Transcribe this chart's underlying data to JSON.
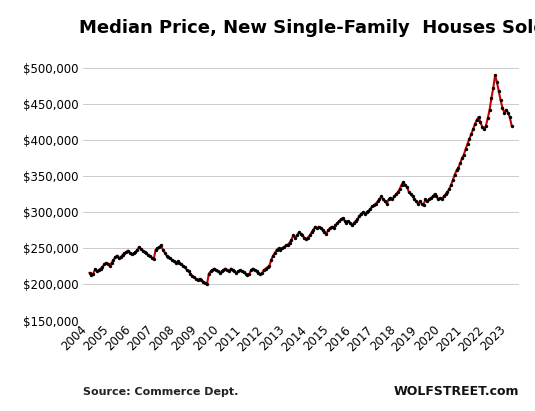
{
  "title": "Median Price, New Single-Family  Houses Sold",
  "source_left": "Source: Commerce Dept.",
  "source_right": "WOLFSTREET.com",
  "line_color": "#cc0000",
  "dot_color": "#000000",
  "background_color": "#ffffff",
  "grid_color": "#cccccc",
  "ylim": [
    150000,
    520000
  ],
  "yticks": [
    150000,
    200000,
    250000,
    300000,
    350000,
    400000,
    450000,
    500000
  ],
  "xlim": [
    2003.7,
    2023.5
  ],
  "data": [
    [
      2004.0,
      216000
    ],
    [
      2004.083,
      213000
    ],
    [
      2004.167,
      215000
    ],
    [
      2004.25,
      221000
    ],
    [
      2004.333,
      218000
    ],
    [
      2004.417,
      220000
    ],
    [
      2004.5,
      222000
    ],
    [
      2004.583,
      224000
    ],
    [
      2004.667,
      228000
    ],
    [
      2004.75,
      230000
    ],
    [
      2004.833,
      229000
    ],
    [
      2004.917,
      226000
    ],
    [
      2005.0,
      230000
    ],
    [
      2005.083,
      234000
    ],
    [
      2005.167,
      238000
    ],
    [
      2005.25,
      240000
    ],
    [
      2005.333,
      236000
    ],
    [
      2005.417,
      238000
    ],
    [
      2005.5,
      241000
    ],
    [
      2005.583,
      243000
    ],
    [
      2005.667,
      245000
    ],
    [
      2005.75,
      247000
    ],
    [
      2005.833,
      244000
    ],
    [
      2005.917,
      242000
    ],
    [
      2006.0,
      243000
    ],
    [
      2006.083,
      245000
    ],
    [
      2006.167,
      248000
    ],
    [
      2006.25,
      252000
    ],
    [
      2006.333,
      249000
    ],
    [
      2006.417,
      247000
    ],
    [
      2006.5,
      245000
    ],
    [
      2006.583,
      243000
    ],
    [
      2006.667,
      241000
    ],
    [
      2006.75,
      239000
    ],
    [
      2006.833,
      237000
    ],
    [
      2006.917,
      235000
    ],
    [
      2007.0,
      248000
    ],
    [
      2007.083,
      250000
    ],
    [
      2007.167,
      252000
    ],
    [
      2007.25,
      254000
    ],
    [
      2007.333,
      248000
    ],
    [
      2007.417,
      244000
    ],
    [
      2007.5,
      240000
    ],
    [
      2007.583,
      238000
    ],
    [
      2007.667,
      236000
    ],
    [
      2007.75,
      234000
    ],
    [
      2007.833,
      232000
    ],
    [
      2007.917,
      230000
    ],
    [
      2008.0,
      232000
    ],
    [
      2008.083,
      230000
    ],
    [
      2008.167,
      228000
    ],
    [
      2008.25,
      226000
    ],
    [
      2008.333,
      224000
    ],
    [
      2008.417,
      220000
    ],
    [
      2008.5,
      218000
    ],
    [
      2008.583,
      215000
    ],
    [
      2008.667,
      212000
    ],
    [
      2008.75,
      210000
    ],
    [
      2008.833,
      208000
    ],
    [
      2008.917,
      206000
    ],
    [
      2009.0,
      208000
    ],
    [
      2009.083,
      206000
    ],
    [
      2009.167,
      204000
    ],
    [
      2009.25,
      202000
    ],
    [
      2009.333,
      200000
    ],
    [
      2009.417,
      215000
    ],
    [
      2009.5,
      218000
    ],
    [
      2009.583,
      220000
    ],
    [
      2009.667,
      222000
    ],
    [
      2009.75,
      220000
    ],
    [
      2009.833,
      218000
    ],
    [
      2009.917,
      216000
    ],
    [
      2010.0,
      218000
    ],
    [
      2010.083,
      220000
    ],
    [
      2010.167,
      222000
    ],
    [
      2010.25,
      220000
    ],
    [
      2010.333,
      218000
    ],
    [
      2010.417,
      222000
    ],
    [
      2010.5,
      220000
    ],
    [
      2010.583,
      218000
    ],
    [
      2010.667,
      216000
    ],
    [
      2010.75,
      218000
    ],
    [
      2010.833,
      220000
    ],
    [
      2010.917,
      218000
    ],
    [
      2011.0,
      217000
    ],
    [
      2011.083,
      215000
    ],
    [
      2011.167,
      213000
    ],
    [
      2011.25,
      214000
    ],
    [
      2011.333,
      220000
    ],
    [
      2011.417,
      222000
    ],
    [
      2011.5,
      220000
    ],
    [
      2011.583,
      218000
    ],
    [
      2011.667,
      216000
    ],
    [
      2011.75,
      214000
    ],
    [
      2011.833,
      216000
    ],
    [
      2011.917,
      220000
    ],
    [
      2012.0,
      222000
    ],
    [
      2012.083,
      224000
    ],
    [
      2012.167,
      226000
    ],
    [
      2012.25,
      234000
    ],
    [
      2012.333,
      240000
    ],
    [
      2012.417,
      244000
    ],
    [
      2012.5,
      248000
    ],
    [
      2012.583,
      250000
    ],
    [
      2012.667,
      248000
    ],
    [
      2012.75,
      250000
    ],
    [
      2012.833,
      252000
    ],
    [
      2012.917,
      254000
    ],
    [
      2013.0,
      255000
    ],
    [
      2013.083,
      258000
    ],
    [
      2013.167,
      262000
    ],
    [
      2013.25,
      268000
    ],
    [
      2013.333,
      265000
    ],
    [
      2013.417,
      268000
    ],
    [
      2013.5,
      272000
    ],
    [
      2013.583,
      270000
    ],
    [
      2013.667,
      268000
    ],
    [
      2013.75,
      265000
    ],
    [
      2013.833,
      263000
    ],
    [
      2013.917,
      265000
    ],
    [
      2014.0,
      268000
    ],
    [
      2014.083,
      272000
    ],
    [
      2014.167,
      276000
    ],
    [
      2014.25,
      280000
    ],
    [
      2014.333,
      278000
    ],
    [
      2014.417,
      280000
    ],
    [
      2014.5,
      278000
    ],
    [
      2014.583,
      275000
    ],
    [
      2014.667,
      272000
    ],
    [
      2014.75,
      270000
    ],
    [
      2014.833,
      275000
    ],
    [
      2014.917,
      278000
    ],
    [
      2015.0,
      280000
    ],
    [
      2015.083,
      278000
    ],
    [
      2015.167,
      282000
    ],
    [
      2015.25,
      285000
    ],
    [
      2015.333,
      288000
    ],
    [
      2015.417,
      290000
    ],
    [
      2015.5,
      292000
    ],
    [
      2015.583,
      288000
    ],
    [
      2015.667,
      285000
    ],
    [
      2015.75,
      288000
    ],
    [
      2015.833,
      285000
    ],
    [
      2015.917,
      282000
    ],
    [
      2016.0,
      285000
    ],
    [
      2016.083,
      288000
    ],
    [
      2016.167,
      290000
    ],
    [
      2016.25,
      295000
    ],
    [
      2016.333,
      298000
    ],
    [
      2016.417,
      300000
    ],
    [
      2016.5,
      298000
    ],
    [
      2016.583,
      300000
    ],
    [
      2016.667,
      302000
    ],
    [
      2016.75,
      305000
    ],
    [
      2016.833,
      308000
    ],
    [
      2016.917,
      310000
    ],
    [
      2017.0,
      312000
    ],
    [
      2017.083,
      315000
    ],
    [
      2017.167,
      318000
    ],
    [
      2017.25,
      322000
    ],
    [
      2017.333,
      318000
    ],
    [
      2017.417,
      315000
    ],
    [
      2017.5,
      312000
    ],
    [
      2017.583,
      318000
    ],
    [
      2017.667,
      320000
    ],
    [
      2017.75,
      318000
    ],
    [
      2017.833,
      322000
    ],
    [
      2017.917,
      325000
    ],
    [
      2018.0,
      328000
    ],
    [
      2018.083,
      332000
    ],
    [
      2018.167,
      338000
    ],
    [
      2018.25,
      342000
    ],
    [
      2018.333,
      338000
    ],
    [
      2018.417,
      335000
    ],
    [
      2018.5,
      328000
    ],
    [
      2018.583,
      325000
    ],
    [
      2018.667,
      322000
    ],
    [
      2018.75,
      318000
    ],
    [
      2018.833,
      315000
    ],
    [
      2018.917,
      312000
    ],
    [
      2019.0,
      315000
    ],
    [
      2019.083,
      312000
    ],
    [
      2019.167,
      310000
    ],
    [
      2019.25,
      318000
    ],
    [
      2019.333,
      315000
    ],
    [
      2019.417,
      318000
    ],
    [
      2019.5,
      320000
    ],
    [
      2019.583,
      322000
    ],
    [
      2019.667,
      325000
    ],
    [
      2019.75,
      322000
    ],
    [
      2019.833,
      318000
    ],
    [
      2019.917,
      320000
    ],
    [
      2020.0,
      318000
    ],
    [
      2020.083,
      322000
    ],
    [
      2020.167,
      325000
    ],
    [
      2020.25,
      328000
    ],
    [
      2020.333,
      332000
    ],
    [
      2020.417,
      338000
    ],
    [
      2020.5,
      345000
    ],
    [
      2020.583,
      352000
    ],
    [
      2020.667,
      358000
    ],
    [
      2020.75,
      362000
    ],
    [
      2020.833,
      368000
    ],
    [
      2020.917,
      375000
    ],
    [
      2021.0,
      380000
    ],
    [
      2021.083,
      388000
    ],
    [
      2021.167,
      395000
    ],
    [
      2021.25,
      402000
    ],
    [
      2021.333,
      408000
    ],
    [
      2021.417,
      415000
    ],
    [
      2021.5,
      422000
    ],
    [
      2021.583,
      428000
    ],
    [
      2021.667,
      432000
    ],
    [
      2021.75,
      425000
    ],
    [
      2021.833,
      418000
    ],
    [
      2021.917,
      415000
    ],
    [
      2022.0,
      420000
    ],
    [
      2022.083,
      430000
    ],
    [
      2022.167,
      442000
    ],
    [
      2022.25,
      458000
    ],
    [
      2022.333,
      472000
    ],
    [
      2022.417,
      490000
    ],
    [
      2022.5,
      480000
    ],
    [
      2022.583,
      468000
    ],
    [
      2022.667,
      455000
    ],
    [
      2022.75,
      445000
    ],
    [
      2022.833,
      438000
    ],
    [
      2022.917,
      442000
    ],
    [
      2023.0,
      438000
    ],
    [
      2023.083,
      432000
    ],
    [
      2023.167,
      420000
    ]
  ]
}
